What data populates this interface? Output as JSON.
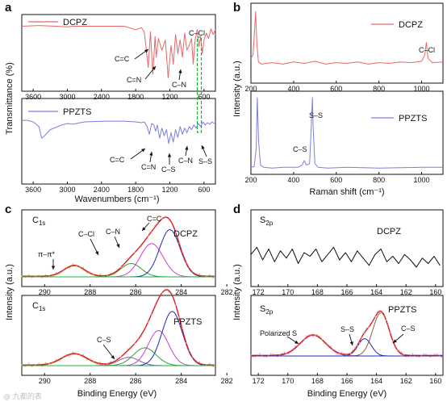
{
  "figure": {
    "watermark": "@ 九都的表"
  },
  "colors": {
    "red": "#e8686a",
    "violet": "#7b7fe0",
    "green": "#18b53a",
    "black": "#111111",
    "fitRed": "#d42020",
    "fitBlue": "#1f2bb8",
    "fitMagenta": "#d43ad4",
    "fitOrange": "#d69a20",
    "fitGreen": "#3c9a3c",
    "fitViolet": "#9a48c8",
    "fitBrown": "#9a5a3a"
  },
  "chart_data": [
    {
      "panel": "a",
      "type": "line",
      "title": "",
      "xlabel": "Wavenumbers (cm⁻¹)",
      "ylabel": "Transmittance (%)",
      "xlim": [
        3800,
        400
      ],
      "x_reversed": true,
      "xticks": [
        "3600",
        "3000",
        "2400",
        "1800",
        "1200",
        "600"
      ],
      "series": [
        {
          "name": "DCPZ",
          "color": "#e8686a",
          "x": [
            3800,
            3500,
            3200,
            3000,
            2900,
            2400,
            2000,
            1800,
            1700,
            1650,
            1580,
            1540,
            1500,
            1460,
            1440,
            1400,
            1340,
            1280,
            1230,
            1180,
            1140,
            1100,
            1060,
            1020,
            980,
            940,
            900,
            860,
            820,
            790,
            760,
            720,
            690,
            660,
            630,
            600,
            560,
            520,
            480,
            440,
            400
          ],
          "y": [
            0.9,
            0.91,
            0.9,
            0.89,
            0.9,
            0.9,
            0.9,
            0.85,
            0.88,
            0.82,
            0.3,
            0.82,
            0.2,
            0.75,
            0.45,
            0.72,
            0.55,
            0.7,
            0.15,
            0.62,
            0.35,
            0.78,
            0.5,
            0.7,
            0.45,
            0.8,
            0.55,
            0.62,
            0.72,
            0.35,
            0.68,
            0.85,
            0.6,
            0.75,
            0.5,
            0.7,
            0.8,
            0.72,
            0.86,
            0.78,
            0.85
          ],
          "annotations": [
            "C=C",
            "C=N",
            "C–N",
            "C–Cl"
          ]
        },
        {
          "name": "PPZTS",
          "color": "#7b7fe0",
          "x": [
            3800,
            3700,
            3600,
            3500,
            3450,
            3400,
            3300,
            3100,
            3000,
            2900,
            2700,
            2300,
            2000,
            1800,
            1700,
            1650,
            1600,
            1560,
            1520,
            1480,
            1450,
            1420,
            1380,
            1340,
            1300,
            1260,
            1220,
            1180,
            1140,
            1100,
            1060,
            1020,
            980,
            940,
            900,
            860,
            820,
            780,
            740,
            700,
            660,
            620,
            580,
            540,
            500,
            460,
            420,
            400
          ],
          "y": [
            0.78,
            0.78,
            0.76,
            0.7,
            0.55,
            0.58,
            0.66,
            0.72,
            0.74,
            0.73,
            0.76,
            0.77,
            0.77,
            0.76,
            0.75,
            0.76,
            0.7,
            0.6,
            0.74,
            0.72,
            0.64,
            0.72,
            0.55,
            0.68,
            0.58,
            0.66,
            0.48,
            0.62,
            0.5,
            0.66,
            0.56,
            0.7,
            0.6,
            0.68,
            0.62,
            0.7,
            0.66,
            0.72,
            0.68,
            0.74,
            0.7,
            0.76,
            0.72,
            0.75,
            0.73,
            0.76,
            0.74,
            0.75
          ],
          "annotations": [
            "C=C",
            "C=N",
            "C–S",
            "C–N",
            "S–S"
          ]
        }
      ],
      "marker_line": {
        "x": 690,
        "style": "dashed",
        "color": "#18b53a"
      }
    },
    {
      "panel": "b",
      "type": "line",
      "title": "",
      "xlabel": "Raman shift (cm⁻¹)",
      "ylabel": "Intensity (a.u.)",
      "xlim": [
        200,
        1100
      ],
      "xticks": [
        "200",
        "400",
        "600",
        "800",
        "1000"
      ],
      "series": [
        {
          "name": "DCPZ",
          "color": "#e8686a",
          "x": [
            200,
            210,
            218,
            222,
            228,
            235,
            250,
            300,
            350,
            400,
            450,
            500,
            550,
            600,
            650,
            700,
            750,
            800,
            850,
            900,
            950,
            1000,
            1015,
            1022,
            1030,
            1050,
            1100
          ],
          "y": [
            0.3,
            0.35,
            0.75,
            0.95,
            0.5,
            0.25,
            0.22,
            0.24,
            0.22,
            0.25,
            0.23,
            0.26,
            0.22,
            0.24,
            0.23,
            0.25,
            0.22,
            0.24,
            0.23,
            0.25,
            0.24,
            0.26,
            0.35,
            0.52,
            0.3,
            0.24,
            0.25
          ],
          "annotations": [
            "C–Cl"
          ]
        },
        {
          "name": "PPZTS",
          "color": "#7b7fe0",
          "x": [
            200,
            215,
            225,
            230,
            236,
            245,
            260,
            300,
            350,
            420,
            440,
            450,
            460,
            475,
            482,
            488,
            492,
            500,
            515,
            560,
            650,
            800,
            1000,
            1100
          ],
          "y": [
            0.05,
            0.06,
            0.3,
            0.98,
            0.4,
            0.08,
            0.05,
            0.04,
            0.05,
            0.05,
            0.08,
            0.14,
            0.08,
            0.1,
            0.55,
            0.98,
            0.55,
            0.1,
            0.05,
            0.04,
            0.05,
            0.04,
            0.05,
            0.05
          ],
          "annotations": [
            "C–S",
            "S–S"
          ]
        }
      ]
    },
    {
      "panel": "c",
      "type": "line",
      "title": "",
      "xlabel": "Binding Energy (eV)",
      "ylabel": "Intensity (a.u.)",
      "xlim": [
        291,
        282.5
      ],
      "x_reversed": true,
      "xticks": [
        "290",
        "288",
        "286",
        "284",
        "282"
      ],
      "subplots": [
        {
          "name": "DCPZ",
          "label_main": "C",
          "label_sub": "1s",
          "peak_labels": [
            "π–π*",
            "C–Cl",
            "C–N",
            "C=C"
          ],
          "components": [
            {
              "center": 288.7,
              "height": 0.18,
              "width": 0.45,
              "color": "#d69a20"
            },
            {
              "center": 286.2,
              "height": 0.22,
              "width": 0.45,
              "color": "#3c9a3c"
            },
            {
              "center": 285.3,
              "height": 0.55,
              "width": 0.5,
              "color": "#d43ad4"
            },
            {
              "center": 284.5,
              "height": 0.78,
              "width": 0.45,
              "color": "#1f2bb8"
            }
          ]
        },
        {
          "name": "PPZTS",
          "label_main": "C",
          "label_sub": "1s",
          "peak_labels": [
            "C–S"
          ],
          "components": [
            {
              "center": 288.7,
              "height": 0.18,
              "width": 0.55,
              "color": "#d69a20"
            },
            {
              "center": 286.3,
              "height": 0.13,
              "width": 0.45,
              "color": "#9a48c8"
            },
            {
              "center": 285.6,
              "height": 0.28,
              "width": 0.5,
              "color": "#3c9a3c"
            },
            {
              "center": 285.0,
              "height": 0.55,
              "width": 0.45,
              "color": "#d43ad4"
            },
            {
              "center": 284.4,
              "height": 0.85,
              "width": 0.45,
              "color": "#1f2bb8"
            }
          ]
        }
      ]
    },
    {
      "panel": "d",
      "type": "line",
      "title": "",
      "xlabel": "Binding Energy (eV)",
      "ylabel": "Intensity (a.u.)",
      "xlim": [
        172.5,
        159.5
      ],
      "x_reversed": true,
      "xticks": [
        "172",
        "170",
        "168",
        "166",
        "164",
        "162",
        "160"
      ],
      "subplots": [
        {
          "name": "DCPZ",
          "label_main": "S",
          "label_sub": "2p",
          "x": [
            172.5,
            172.1,
            171.7,
            171.3,
            170.9,
            170.5,
            170.1,
            169.7,
            169.3,
            168.9,
            168.5,
            168.1,
            167.7,
            167.3,
            166.9,
            166.5,
            166.1,
            165.7,
            165.3,
            164.9,
            164.5,
            164.1,
            163.7,
            163.3,
            162.9,
            162.5,
            162.1,
            161.7,
            161.3,
            160.9,
            160.5,
            160.1,
            159.7
          ],
          "y": [
            0.55,
            0.75,
            0.4,
            0.7,
            0.35,
            0.65,
            0.45,
            0.7,
            0.3,
            0.6,
            0.5,
            0.7,
            0.35,
            0.55,
            0.75,
            0.4,
            0.6,
            0.35,
            0.65,
            0.45,
            0.25,
            0.55,
            0.7,
            0.35,
            0.5,
            0.3,
            0.55,
            0.4,
            0.2,
            0.45,
            0.3,
            0.5,
            0.25
          ]
        },
        {
          "name": "PPZTS",
          "label_main": "S",
          "label_sub": "2p",
          "peak_labels": [
            "Polarized S",
            "S–S",
            "C–S"
          ],
          "components": [
            {
              "center": 168.3,
              "height": 0.38,
              "width": 0.85,
              "color": "#9a48c8"
            },
            {
              "center": 164.8,
              "height": 0.32,
              "width": 0.45,
              "color": "#1f2bb8"
            },
            {
              "center": 163.7,
              "height": 0.8,
              "width": 0.55,
              "color": "#9a5a3a"
            }
          ]
        }
      ]
    }
  ]
}
